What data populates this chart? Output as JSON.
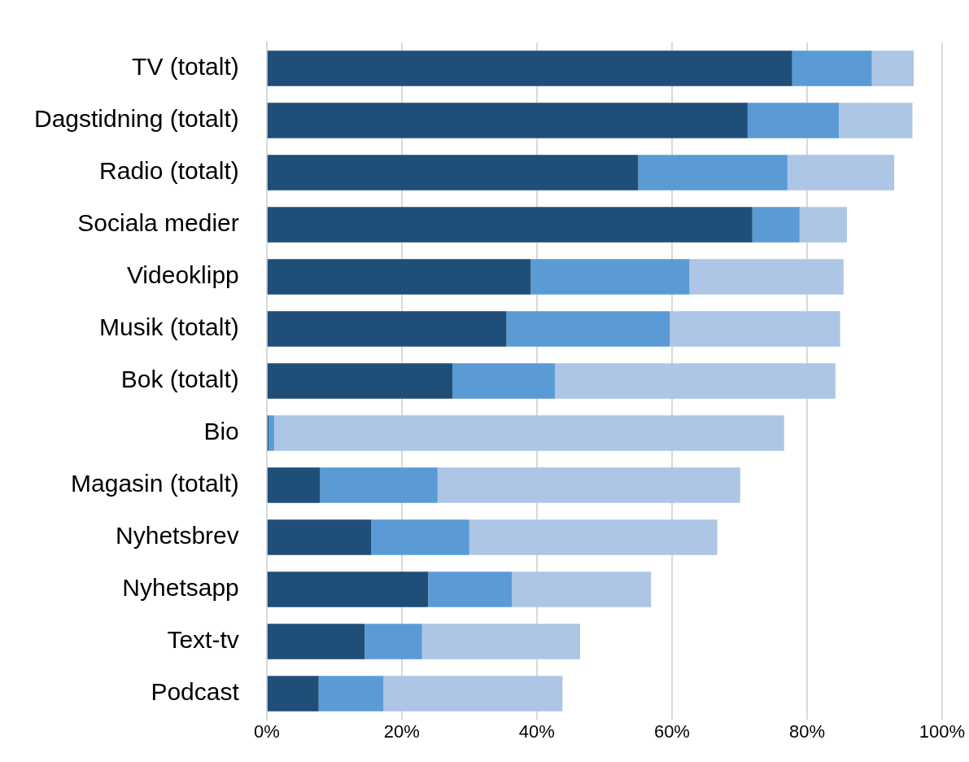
{
  "chart_data": {
    "type": "bar",
    "orientation": "horizontal",
    "stacked": true,
    "categories": [
      "TV (totalt)",
      "Dagstidning (totalt)",
      "Radio (totalt)",
      "Sociala medier",
      "Videoklipp",
      "Musik (totalt)",
      "Bok (totalt)",
      "Bio",
      "Magasin (totalt)",
      "Nyhetsbrev",
      "Nyhetsapp",
      "Text-tv",
      "Podcast"
    ],
    "series": [
      {
        "color": "#1f4e79",
        "values": [
          77.8,
          71.2,
          55.0,
          71.9,
          39.1,
          35.5,
          27.5,
          0.3,
          7.9,
          15.5,
          23.9,
          14.5,
          7.7
        ]
      },
      {
        "color": "#5b9bd5",
        "values": [
          11.8,
          13.5,
          22.1,
          7.0,
          23.5,
          24.2,
          15.2,
          0.8,
          17.4,
          14.5,
          12.4,
          8.5,
          9.6
        ]
      },
      {
        "color": "#adc6e5",
        "values": [
          6.2,
          10.9,
          15.8,
          7.0,
          22.8,
          25.2,
          41.5,
          75.5,
          44.8,
          36.7,
          20.6,
          23.4,
          26.5
        ]
      }
    ],
    "xlim": [
      0,
      100
    ],
    "xticks": [
      {
        "value": 0,
        "label": "0%"
      },
      {
        "value": 20,
        "label": "20%"
      },
      {
        "value": 40,
        "label": "40%"
      },
      {
        "value": 60,
        "label": "60%"
      },
      {
        "value": 80,
        "label": "80%"
      },
      {
        "value": 100,
        "label": "100%"
      }
    ],
    "grid": "x",
    "legend": false
  }
}
